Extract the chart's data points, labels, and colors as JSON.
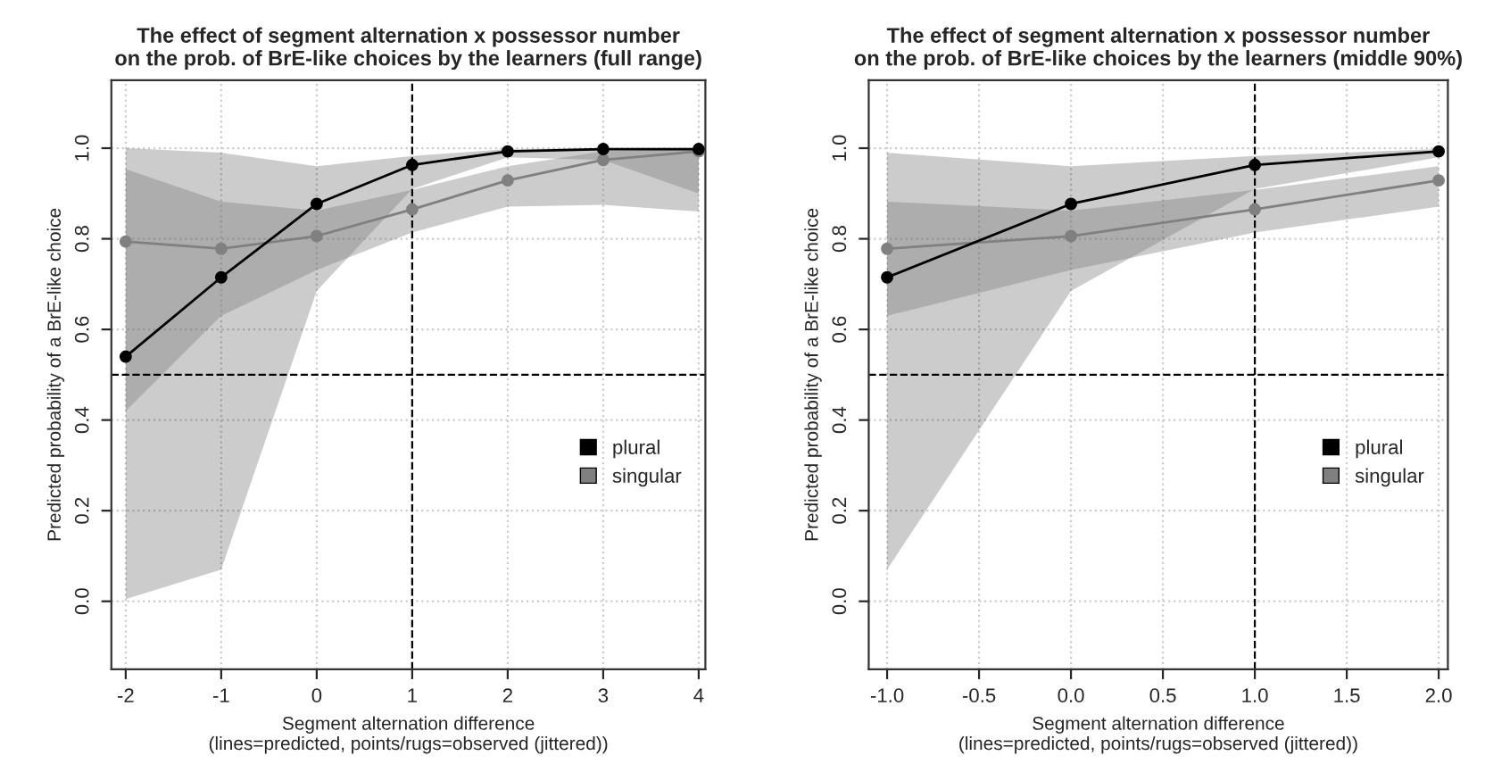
{
  "chart_data": [
    {
      "type": "line",
      "title": "The effect of segment alternation x possessor number\non the prob. of BrE-like choices by the learners (full range)",
      "xlabel": "Segment alternation difference\n(lines=predicted, points/rugs=observed (jittered))",
      "ylabel": "Predicted probability of a BrE-like choice",
      "x": [
        -2,
        -1,
        0,
        1,
        2,
        3,
        4
      ],
      "series": [
        {
          "name": "plural",
          "color": "#000000",
          "values": [
            0.54,
            0.715,
            0.877,
            0.963,
            0.993,
            0.998,
            0.998
          ],
          "lower": [
            0.005,
            0.07,
            0.685,
            0.91,
            0.98,
            0.974,
            0.9
          ],
          "upper": [
            1.0,
            0.99,
            0.96,
            0.983,
            0.998,
            1.0,
            1.0
          ]
        },
        {
          "name": "singular",
          "color": "#808080",
          "values": [
            0.794,
            0.778,
            0.806,
            0.865,
            0.929,
            0.974,
            0.993
          ],
          "lower": [
            0.42,
            0.63,
            0.731,
            0.814,
            0.871,
            0.875,
            0.86
          ],
          "upper": [
            0.954,
            0.882,
            0.862,
            0.908,
            0.96,
            0.993,
            1.0
          ]
        }
      ],
      "xlim": [
        -2.15,
        4.07
      ],
      "ylim": [
        -0.15,
        1.15
      ],
      "xticks": [
        -2,
        -1,
        0,
        1,
        2,
        3,
        4
      ],
      "yticks": [
        {
          "value": 0,
          "label": "0.0"
        },
        {
          "value": 0.2,
          "label": "0.2"
        },
        {
          "value": 0.4,
          "label": "0.4"
        },
        {
          "value": 0.6,
          "label": "0.6"
        },
        {
          "value": 0.8,
          "label": "0.8"
        },
        {
          "value": 1.0,
          "label": "1.0"
        }
      ],
      "ref_lines": [
        {
          "axis": "y",
          "value": 0.5,
          "line_style": "dashed",
          "color": "#000000"
        },
        {
          "axis": "x",
          "value": 1,
          "line_style": "dashed",
          "color": "#000000"
        }
      ],
      "grid": true,
      "legend": "right",
      "marker": "circle"
    },
    {
      "type": "line",
      "title": "The effect of segment alternation x possessor number\non the prob. of BrE-like choices by the learners (middle 90%)",
      "xlabel": "Segment alternation difference\n(lines=predicted, points/rugs=observed (jittered))",
      "ylabel": "Predicted probability of a BrE-like choice",
      "x": [
        -1,
        0,
        1,
        2
      ],
      "series": [
        {
          "name": "plural",
          "color": "#000000",
          "values": [
            0.715,
            0.877,
            0.963,
            0.993
          ],
          "lower": [
            0.07,
            0.685,
            0.91,
            0.98
          ],
          "upper": [
            0.99,
            0.96,
            0.983,
            0.998
          ]
        },
        {
          "name": "singular",
          "color": "#808080",
          "values": [
            0.778,
            0.806,
            0.865,
            0.929
          ],
          "lower": [
            0.63,
            0.731,
            0.814,
            0.871
          ],
          "upper": [
            0.882,
            0.862,
            0.908,
            0.96
          ]
        }
      ],
      "xlim": [
        -1.1,
        2.05
      ],
      "ylim": [
        -0.15,
        1.15
      ],
      "xticks": [
        {
          "value": -1,
          "label": "-1.0"
        },
        {
          "value": -0.5,
          "label": "-0.5"
        },
        {
          "value": 0,
          "label": "0.0"
        },
        {
          "value": 0.5,
          "label": "0.5"
        },
        {
          "value": 1,
          "label": "1.0"
        },
        {
          "value": 1.5,
          "label": "1.5"
        },
        {
          "value": 2,
          "label": "2.0"
        }
      ],
      "yticks": [
        {
          "value": 0,
          "label": "0.0"
        },
        {
          "value": 0.2,
          "label": "0.2"
        },
        {
          "value": 0.4,
          "label": "0.4"
        },
        {
          "value": 0.6,
          "label": "0.6"
        },
        {
          "value": 0.8,
          "label": "0.8"
        },
        {
          "value": 1.0,
          "label": "1.0"
        }
      ],
      "ref_lines": [
        {
          "axis": "y",
          "value": 0.5,
          "line_style": "dashed",
          "color": "#000000"
        },
        {
          "axis": "x",
          "value": 1,
          "line_style": "dashed",
          "color": "#000000"
        }
      ],
      "grid": true,
      "legend": "right",
      "marker": "circle"
    }
  ]
}
